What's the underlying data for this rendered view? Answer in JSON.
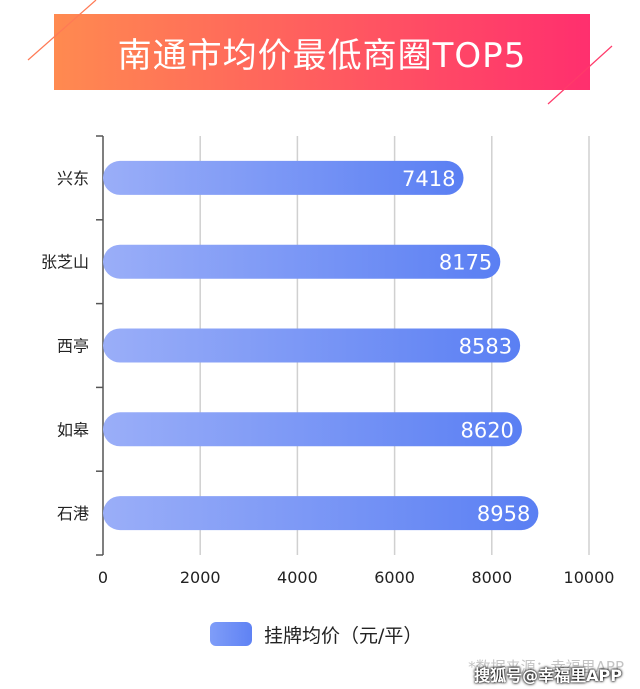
{
  "header": {
    "title": "南通市均价最低商圈TOP5"
  },
  "chart_data": {
    "type": "bar",
    "orientation": "horizontal",
    "title": "南通市均价最低商圈TOP5",
    "categories": [
      "兴东",
      "张芝山",
      "西亭",
      "如皋",
      "石港"
    ],
    "series": [
      {
        "name": "挂牌均价（元/平）",
        "values": [
          7418,
          8175,
          8583,
          8620,
          8958
        ]
      }
    ],
    "xlim": [
      0,
      10000
    ],
    "xticks": [
      "0",
      "2000",
      "4000",
      "6000",
      "8000",
      "10000"
    ],
    "grid": true,
    "legend_position": "bottom",
    "data_labels": [
      "7418",
      "8175",
      "8583",
      "8620",
      "8958"
    ]
  },
  "legend": {
    "label": "挂牌均价（元/平）"
  },
  "footer": {
    "source": "*数据来源：幸福里APP",
    "watermark": "搜狐号@幸福里APP"
  },
  "colors": {
    "banner_start": "#ff8a50",
    "banner_end": "#ff2f6e",
    "bar_start": "#9aaef8",
    "bar_end": "#5a7ff3",
    "grid": "#d0d0d0",
    "axis": "#555555"
  }
}
